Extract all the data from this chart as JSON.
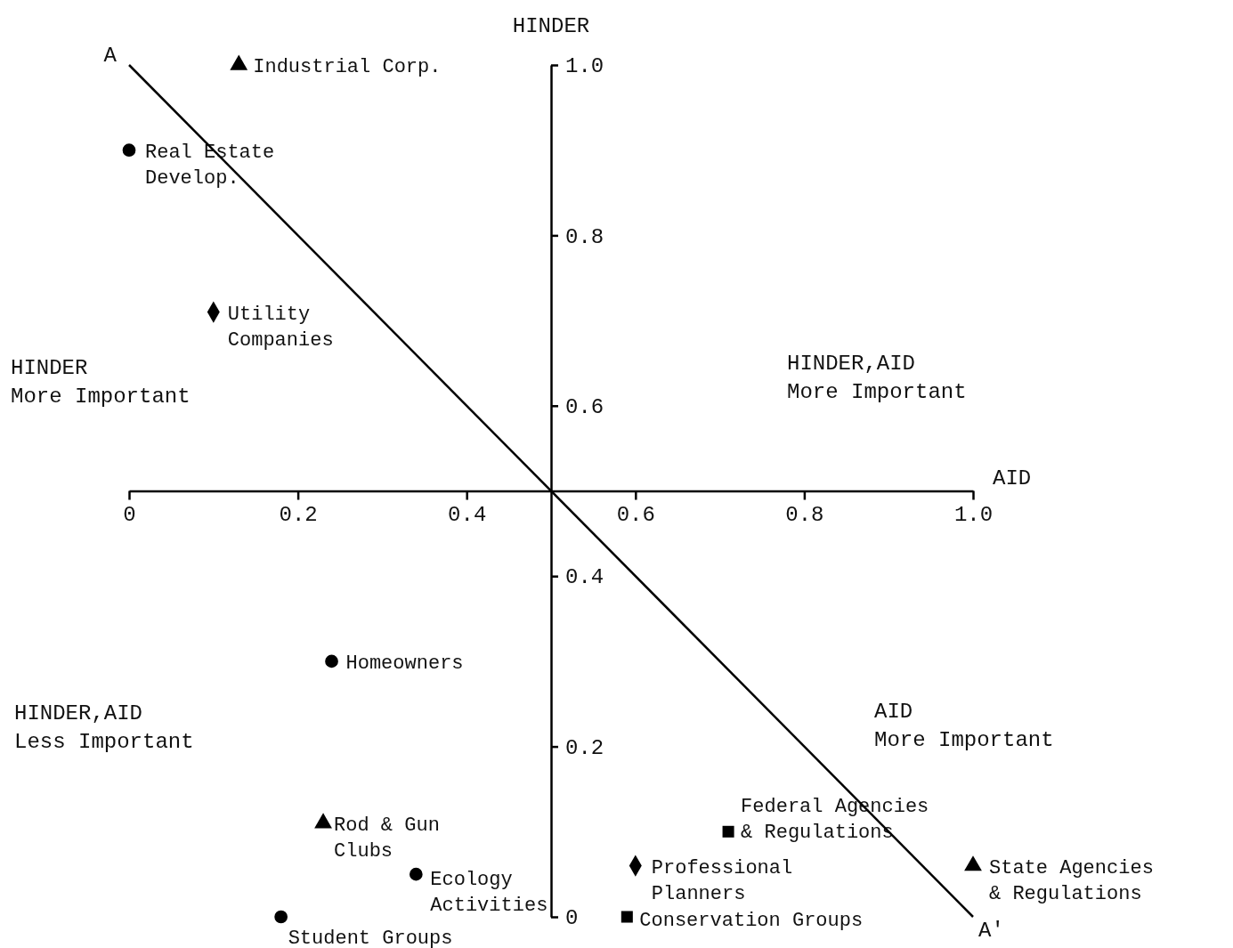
{
  "chart_data": {
    "type": "scatter",
    "xlabel": "AID",
    "ylabel": "HINDER",
    "xlim": [
      0,
      1
    ],
    "ylim": [
      0,
      1
    ],
    "xticks": [
      0,
      0.2,
      0.4,
      0.6,
      0.8,
      {
        "value": 1,
        "label": "1.0"
      }
    ],
    "yticks": [
      0,
      0.2,
      0.4,
      0.6,
      0.8,
      {
        "value": 1,
        "label": "1.0"
      }
    ],
    "series": [
      {
        "name": "Industrial Corp.",
        "color": "#000000",
        "marker": "triangle",
        "x": [
          0.13
        ],
        "values": [
          1.0
        ]
      },
      {
        "name": "Real Estate\nDevelop.",
        "color": "#000000",
        "marker": "circle",
        "x": [
          0.0
        ],
        "values": [
          0.9
        ]
      },
      {
        "name": "Utility\nCompanies",
        "color": "#000000",
        "marker": "diamond",
        "x": [
          0.1
        ],
        "values": [
          0.71
        ]
      },
      {
        "name": "Homeowners",
        "color": "#000000",
        "marker": "circle",
        "x": [
          0.24
        ],
        "values": [
          0.3
        ]
      },
      {
        "name": "Rod & Gun\nClubs",
        "color": "#000000",
        "marker": "triangle",
        "x": [
          0.23
        ],
        "values": [
          0.11
        ]
      },
      {
        "name": "Ecology\nActivities",
        "color": "#000000",
        "marker": "circle",
        "x": [
          0.34
        ],
        "values": [
          0.05
        ]
      },
      {
        "name": "Student Groups",
        "color": "#000000",
        "marker": "circle",
        "x": [
          0.18
        ],
        "values": [
          0.0
        ]
      },
      {
        "name": "Federal Agencies\n& Regulations",
        "color": "#000000",
        "marker": "square",
        "x": [
          0.71
        ],
        "values": [
          0.1
        ]
      },
      {
        "name": "Professional\nPlanners",
        "color": "#000000",
        "marker": "diamond",
        "x": [
          0.6
        ],
        "values": [
          0.06
        ]
      },
      {
        "name": "Conservation Groups",
        "color": "#000000",
        "marker": "square",
        "x": [
          0.59
        ],
        "values": [
          0.0
        ]
      },
      {
        "name": "State Agencies\n& Regulations",
        "color": "#000000",
        "marker": "triangle",
        "x": [
          1.0
        ],
        "values": [
          0.06
        ]
      },
      {
        "type": "line",
        "color": "#000000",
        "x": [
          0,
          1
        ],
        "values": [
          1,
          0
        ]
      }
    ],
    "annotations": [
      {
        "text": "A",
        "x": 0,
        "y": 1
      },
      {
        "text": "A'",
        "x": 1,
        "y": 0
      },
      "HINDER\nMore Important",
      "HINDER,AID\nMore Important",
      "HINDER,AID\nLess Important",
      "AID\nMore Important"
    ]
  }
}
